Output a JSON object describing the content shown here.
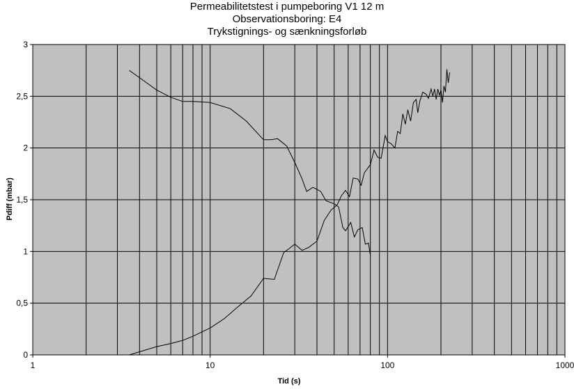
{
  "chart_data": {
    "type": "line",
    "title": [
      "Permeabilitetstest i pumpeboring V1 12 m",
      "Observationsboring: E4",
      "Trykstignings- og sænkningsforløb"
    ],
    "xlabel": "Tid (s)",
    "ylabel": "Pdiff (mbar)",
    "xscale": "log",
    "xlim": [
      1,
      1000
    ],
    "ylim": [
      0,
      3
    ],
    "x_ticks": [
      1,
      10,
      100,
      1000
    ],
    "x_tick_labels": [
      "1",
      "10",
      "100",
      "1000"
    ],
    "y_ticks": [
      0,
      0.5,
      1,
      1.5,
      2,
      2.5,
      3
    ],
    "y_tick_labels": [
      "0",
      "0,5",
      "1",
      "1,5",
      "2",
      "2,5",
      "3"
    ],
    "grid": true,
    "legend": "none",
    "colors": {
      "plot_background": "#c0c0c0",
      "grid": "#000000",
      "line": "#000000"
    },
    "series": [
      {
        "points": [
          [
            3.5,
            2.75
          ],
          [
            4,
            2.68
          ],
          [
            5,
            2.56
          ],
          [
            6,
            2.49
          ],
          [
            7,
            2.45
          ],
          [
            8,
            2.45
          ],
          [
            10,
            2.44
          ],
          [
            13,
            2.38
          ],
          [
            16,
            2.26
          ],
          [
            20,
            2.08
          ],
          [
            22,
            2.08
          ],
          [
            24,
            2.09
          ],
          [
            27,
            2.02
          ],
          [
            30,
            1.86
          ],
          [
            33,
            1.7
          ],
          [
            35,
            1.58
          ],
          [
            38,
            1.62
          ],
          [
            42,
            1.58
          ],
          [
            45,
            1.49
          ],
          [
            50,
            1.46
          ],
          [
            53,
            1.43
          ],
          [
            56,
            1.23
          ],
          [
            58,
            1.2
          ],
          [
            62,
            1.28
          ],
          [
            65,
            1.14
          ],
          [
            68,
            1.21
          ],
          [
            72,
            1.23
          ],
          [
            75,
            1.07
          ],
          [
            78,
            1.08
          ],
          [
            80,
            0.96
          ]
        ]
      },
      {
        "points": [
          [
            3.5,
            0.0
          ],
          [
            4,
            0.03
          ],
          [
            5,
            0.08
          ],
          [
            6,
            0.11
          ],
          [
            7,
            0.14
          ],
          [
            8,
            0.18
          ],
          [
            10,
            0.26
          ],
          [
            12,
            0.35
          ],
          [
            14,
            0.45
          ],
          [
            17,
            0.57
          ],
          [
            20,
            0.74
          ],
          [
            23,
            0.73
          ],
          [
            26,
            0.99
          ],
          [
            28,
            1.03
          ],
          [
            30,
            1.07
          ],
          [
            33,
            1.01
          ],
          [
            36,
            1.04
          ],
          [
            40,
            1.1
          ],
          [
            44,
            1.3
          ],
          [
            48,
            1.4
          ],
          [
            52,
            1.45
          ],
          [
            55,
            1.54
          ],
          [
            58,
            1.59
          ],
          [
            61,
            1.53
          ],
          [
            64,
            1.71
          ],
          [
            68,
            1.7
          ],
          [
            71,
            1.64
          ],
          [
            74,
            1.76
          ],
          [
            80,
            1.84
          ],
          [
            84,
            1.98
          ],
          [
            88,
            1.91
          ],
          [
            92,
            1.9
          ],
          [
            97,
            2.12
          ],
          [
            100,
            2.06
          ],
          [
            105,
            2.04
          ],
          [
            110,
            2.0
          ],
          [
            114,
            2.16
          ],
          [
            118,
            2.14
          ],
          [
            122,
            2.33
          ],
          [
            126,
            2.23
          ],
          [
            130,
            2.37
          ],
          [
            135,
            2.26
          ],
          [
            140,
            2.44
          ],
          [
            145,
            2.47
          ],
          [
            148,
            2.34
          ],
          [
            152,
            2.45
          ],
          [
            158,
            2.54
          ],
          [
            165,
            2.52
          ],
          [
            170,
            2.48
          ],
          [
            176,
            2.57
          ],
          [
            180,
            2.5
          ],
          [
            184,
            2.57
          ],
          [
            188,
            2.47
          ],
          [
            192,
            2.57
          ],
          [
            196,
            2.51
          ],
          [
            200,
            2.56
          ],
          [
            204,
            2.44
          ],
          [
            208,
            2.6
          ],
          [
            212,
            2.54
          ],
          [
            216,
            2.76
          ],
          [
            220,
            2.63
          ],
          [
            224,
            2.73
          ]
        ]
      }
    ]
  }
}
